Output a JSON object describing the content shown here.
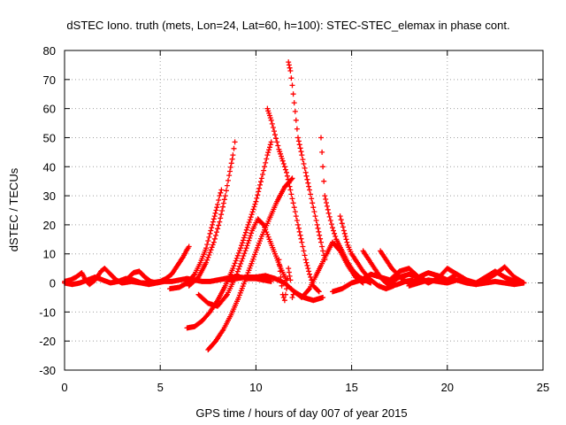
{
  "chart_data": {
    "type": "scatter",
    "title": "dSTEC Iono. truth (mets, Lon=24, Lat=60, h=100): STEC-STEC_elemax in phase cont.",
    "xlabel": "GPS time / hours of day 007 of year 2015",
    "ylabel": "dSTEC  / TECUs",
    "xlim": [
      0,
      25
    ],
    "ylim": [
      -30,
      80
    ],
    "xticks": [
      0,
      5,
      10,
      15,
      20,
      25
    ],
    "yticks": [
      -30,
      -20,
      -10,
      0,
      10,
      20,
      30,
      40,
      50,
      60,
      70,
      80
    ],
    "grid": true,
    "legend": "none",
    "marker": "+",
    "color": "#ff0000",
    "series": [
      {
        "x": [
          0.0,
          0.3,
          0.6,
          0.9,
          1.1,
          1.3,
          1.6,
          1.9,
          2.1,
          2.4,
          2.7,
          3.0,
          3.3,
          3.6,
          3.9,
          4.2,
          4.5,
          4.8,
          5.1,
          5.4
        ],
        "y": [
          0.5,
          1.0,
          2.0,
          3.5,
          1.0,
          -0.5,
          1.0,
          4.0,
          5.0,
          3.0,
          1.0,
          0.0,
          1.5,
          3.5,
          4.0,
          2.0,
          0.5,
          0.0,
          0.5,
          1.0
        ]
      },
      {
        "x": [
          0.0,
          0.4,
          0.8,
          1.2,
          1.6,
          2.0,
          2.4,
          2.8,
          3.2,
          3.6,
          4.0,
          4.4,
          4.8,
          5.2,
          5.6,
          6.0,
          6.4,
          6.8,
          7.2,
          7.6,
          8.0,
          8.4,
          8.8,
          9.2,
          9.6,
          10.0,
          10.4,
          10.8
        ],
        "y": [
          0.0,
          -0.5,
          0.0,
          1.0,
          2.0,
          1.0,
          0.0,
          0.5,
          1.5,
          1.0,
          0.0,
          -0.5,
          0.0,
          0.5,
          0.5,
          1.0,
          1.5,
          1.0,
          0.5,
          0.5,
          1.0,
          1.5,
          2.0,
          2.0,
          1.5,
          1.5,
          1.0,
          0.5
        ]
      },
      {
        "x": [
          3.0,
          3.5,
          4.0,
          4.5,
          5.0,
          5.3,
          5.6,
          5.8,
          6.0,
          6.2,
          6.4,
          6.5
        ],
        "y": [
          0.0,
          0.5,
          0.0,
          0.0,
          0.5,
          1.5,
          3.0,
          5.0,
          7.0,
          9.0,
          11.5,
          12.5
        ]
      },
      {
        "x": [
          5.5,
          6.0,
          6.4,
          6.8,
          7.1,
          7.4,
          7.6,
          7.8,
          8.0,
          8.1,
          8.2
        ],
        "y": [
          -2.0,
          -1.5,
          0.0,
          3.0,
          7.0,
          12.0,
          17.0,
          22.0,
          27.0,
          30.0,
          32.0
        ]
      },
      {
        "x": [
          6.5,
          7.0,
          7.4,
          7.8,
          8.1,
          8.4,
          8.6,
          8.8,
          8.9
        ],
        "y": [
          -1.0,
          2.0,
          7.0,
          14.0,
          21.0,
          30.0,
          37.0,
          44.0,
          48.5
        ]
      },
      {
        "x": [
          6.4,
          6.8,
          7.2,
          7.6,
          8.0,
          8.4,
          8.8,
          9.2,
          9.6,
          10.0,
          10.3,
          10.6,
          10.8
        ],
        "y": [
          -15.5,
          -15.0,
          -13.0,
          -10.0,
          -6.0,
          -1.0,
          5.0,
          12.0,
          20.0,
          28.0,
          36.0,
          44.0,
          48.5
        ]
      },
      {
        "x": [
          7.5,
          7.9,
          8.3,
          8.7,
          9.1,
          9.5,
          9.9,
          10.3,
          10.7,
          11.1,
          11.5,
          11.9
        ],
        "y": [
          -23.0,
          -20.0,
          -16.0,
          -11.0,
          -5.0,
          2.0,
          9.0,
          16.0,
          22.0,
          28.0,
          33.0,
          36.0
        ]
      },
      {
        "x": [
          7.0,
          7.5,
          8.0,
          8.5,
          9.0,
          9.5,
          9.8,
          10.1,
          10.4,
          10.7,
          11.0,
          11.3,
          11.6
        ],
        "y": [
          -4.0,
          -7.0,
          -8.0,
          -4.0,
          3.0,
          12.0,
          18.0,
          22.0,
          20.0,
          15.0,
          10.0,
          5.0,
          1.0
        ]
      },
      {
        "x": [
          8.5,
          9.0,
          9.5,
          10.0,
          10.5,
          11.0,
          11.5,
          12.0,
          12.5,
          13.0,
          13.5
        ],
        "y": [
          1.0,
          1.5,
          2.0,
          2.0,
          2.5,
          1.5,
          0.0,
          -3.0,
          -5.0,
          -6.0,
          -5.0
        ]
      },
      {
        "x": [
          10.6,
          10.8,
          11.0,
          11.2,
          11.4,
          11.6,
          11.8,
          12.0,
          12.2,
          12.4,
          12.6,
          12.8,
          13.0,
          13.3
        ],
        "y": [
          60.0,
          56.0,
          51.0,
          46.0,
          42.0,
          38.0,
          32.0,
          26.0,
          20.0,
          14.0,
          8.0,
          3.0,
          -1.0,
          -3.0
        ]
      },
      {
        "x": [
          11.7,
          11.8,
          11.9,
          12.0,
          12.1,
          12.2,
          12.4,
          12.6,
          12.8,
          13.0,
          13.2,
          13.4,
          13.6
        ],
        "y": [
          76.0,
          73.0,
          68.0,
          62.0,
          56.0,
          50.0,
          44.0,
          38.0,
          32.0,
          26.0,
          20.0,
          14.0,
          8.0
        ]
      },
      {
        "x": [
          11.2,
          11.3,
          11.4,
          11.5,
          11.6,
          11.7,
          11.8,
          11.9,
          12.0
        ],
        "y": [
          8.0,
          2.0,
          -4.0,
          -6.0,
          -2.0,
          5.0,
          1.0,
          -5.0,
          -3.0
        ]
      },
      {
        "x": [
          12.0,
          12.4,
          12.8,
          13.1,
          13.4,
          13.7,
          14.0,
          14.4,
          14.8,
          15.2,
          15.6
        ],
        "y": [
          -3.0,
          -5.0,
          -2.0,
          2.0,
          6.0,
          10.0,
          14.0,
          11.0,
          6.0,
          2.0,
          0.0
        ]
      },
      {
        "x": [
          13.4,
          13.5,
          13.6,
          13.8,
          14.0,
          14.2,
          14.5,
          14.8,
          15.1,
          15.4,
          15.7,
          16.0
        ],
        "y": [
          50.0,
          40.0,
          30.0,
          24.0,
          19.0,
          15.0,
          11.0,
          7.0,
          4.0,
          2.0,
          1.0,
          0.0
        ]
      },
      {
        "x": [
          14.4,
          14.6,
          14.8,
          15.0,
          15.3,
          15.6,
          16.0,
          16.4,
          16.8,
          17.2
        ],
        "y": [
          23.0,
          18.0,
          13.0,
          10.0,
          7.0,
          4.0,
          1.0,
          -1.0,
          -2.0,
          -1.0
        ]
      },
      {
        "x": [
          15.6,
          15.9,
          16.2,
          16.5,
          16.8,
          17.1,
          17.4,
          17.8,
          18.2
        ],
        "y": [
          11.0,
          8.0,
          5.0,
          2.0,
          0.0,
          -1.0,
          -0.5,
          0.5,
          1.0
        ]
      },
      {
        "x": [
          16.5,
          16.8,
          17.1,
          17.4,
          17.7,
          18.0,
          18.4,
          18.8
        ],
        "y": [
          11.0,
          8.0,
          5.0,
          3.0,
          1.0,
          0.0,
          1.0,
          1.5
        ]
      },
      {
        "x": [
          14.0,
          14.5,
          15.0,
          15.5,
          16.0,
          16.5,
          17.0,
          17.5,
          18.0,
          18.5,
          19.0,
          19.5,
          20.0,
          20.5,
          21.0,
          21.5,
          22.0,
          22.5,
          23.0,
          23.5,
          24.0
        ],
        "y": [
          -3.0,
          -2.0,
          0.0,
          1.0,
          3.0,
          2.0,
          1.0,
          4.0,
          5.0,
          2.0,
          0.0,
          1.5,
          5.0,
          3.0,
          1.0,
          0.0,
          2.0,
          4.0,
          2.0,
          0.5,
          0.0
        ]
      },
      {
        "x": [
          17.0,
          17.5,
          18.0,
          18.5,
          19.0,
          19.5,
          20.0,
          20.5,
          21.0,
          21.5,
          22.0,
          22.5,
          23.0,
          23.5,
          24.0
        ],
        "y": [
          0.0,
          2.0,
          3.0,
          2.0,
          3.5,
          2.5,
          1.0,
          3.0,
          1.0,
          -0.5,
          1.0,
          3.0,
          5.5,
          2.0,
          0.0
        ]
      },
      {
        "x": [
          18.0,
          18.5,
          19.0,
          19.5,
          20.0,
          20.5,
          21.0,
          21.5,
          22.0,
          22.5,
          23.0,
          23.5,
          24.0
        ],
        "y": [
          -1.0,
          0.0,
          1.0,
          0.5,
          0.0,
          1.0,
          0.0,
          -0.5,
          0.0,
          0.5,
          0.0,
          -0.5,
          0.0
        ]
      }
    ]
  }
}
